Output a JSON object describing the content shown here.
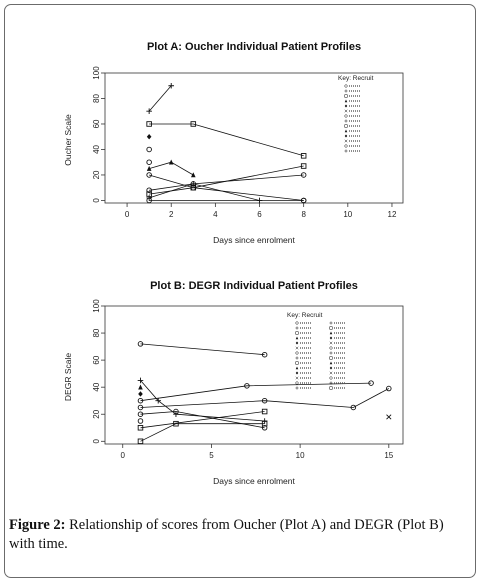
{
  "caption": {
    "label": "Figure 2:",
    "text": "Relationship of scores from Oucher (Plot A) and DEGR (Plot B) with time."
  },
  "chart_data": [
    {
      "type": "line",
      "title": "Plot A: Oucher Individual Patient Profiles",
      "xlabel": "Days since enrolment",
      "ylabel": "Oucher Scale",
      "xlim": [
        -1,
        12.5
      ],
      "ylim": [
        -2,
        100
      ],
      "x_ticks": [
        0,
        2,
        4,
        6,
        8,
        10,
        12
      ],
      "y_ticks": [
        0,
        20,
        40,
        60,
        80,
        100
      ],
      "legend_title": "Key: Recruit",
      "legend_placement": "top-right",
      "series": [
        {
          "marker": "plus",
          "points": [
            [
              1,
              70
            ],
            [
              2,
              90
            ]
          ]
        },
        {
          "marker": "square",
          "points": [
            [
              1,
              60
            ],
            [
              3,
              60
            ],
            [
              8,
              35
            ]
          ]
        },
        {
          "marker": "triangle",
          "points": [
            [
              1,
              25
            ],
            [
              2,
              30
            ],
            [
              3,
              20
            ]
          ]
        },
        {
          "marker": "circle",
          "points": [
            [
              1,
              20
            ],
            [
              3,
              10
            ],
            [
              8,
              0
            ]
          ]
        },
        {
          "marker": "square",
          "points": [
            [
              1,
              5
            ],
            [
              3,
              10
            ],
            [
              8,
              27
            ]
          ]
        },
        {
          "marker": "circle",
          "points": [
            [
              1,
              8
            ],
            [
              3,
              13
            ],
            [
              8,
              20
            ]
          ]
        },
        {
          "marker": "plus",
          "points": [
            [
              1,
              2
            ],
            [
              3,
              13
            ],
            [
              6,
              0
            ]
          ]
        },
        {
          "marker": "circle",
          "points": [
            [
              1,
              0
            ],
            [
              8,
              0
            ]
          ]
        },
        {
          "marker": "diamond",
          "points": [
            [
              1,
              50
            ]
          ]
        },
        {
          "marker": "circle",
          "points": [
            [
              1,
              40
            ]
          ]
        },
        {
          "marker": "circle",
          "points": [
            [
              1,
              30
            ]
          ]
        }
      ]
    },
    {
      "type": "line",
      "title": "Plot B: DEGR Individual Patient Profiles",
      "xlabel": "Days since enrolment",
      "ylabel": "DEGR Scale",
      "xlim": [
        -1,
        15.8
      ],
      "ylim": [
        -2,
        100
      ],
      "x_ticks": [
        0,
        5,
        10,
        15
      ],
      "y_ticks": [
        0,
        20,
        40,
        60,
        80,
        100
      ],
      "legend_title": "Key: Recruit",
      "legend_placement": "top-right",
      "series": [
        {
          "marker": "circle",
          "points": [
            [
              1,
              72
            ],
            [
              8,
              64
            ]
          ]
        },
        {
          "marker": "circle",
          "points": [
            [
              1,
              30
            ],
            [
              7,
              41
            ],
            [
              14,
              43
            ]
          ]
        },
        {
          "marker": "circle",
          "points": [
            [
              1,
              25
            ],
            [
              8,
              30
            ],
            [
              13,
              25
            ],
            [
              15,
              39
            ]
          ]
        },
        {
          "marker": "plus",
          "points": [
            [
              1,
              45
            ],
            [
              2,
              30
            ],
            [
              3,
              20
            ],
            [
              8,
              15
            ]
          ]
        },
        {
          "marker": "square",
          "points": [
            [
              1,
              10
            ],
            [
              8,
              22
            ]
          ]
        },
        {
          "marker": "square",
          "points": [
            [
              1,
              0
            ],
            [
              3,
              13
            ],
            [
              8,
              13
            ]
          ]
        },
        {
          "marker": "circle",
          "points": [
            [
              1,
              20
            ],
            [
              3,
              22
            ],
            [
              8,
              10
            ]
          ]
        },
        {
          "marker": "x",
          "points": [
            [
              15,
              18
            ]
          ]
        },
        {
          "marker": "triangle",
          "points": [
            [
              1,
              40
            ]
          ]
        },
        {
          "marker": "diamond",
          "points": [
            [
              1,
              35
            ]
          ]
        },
        {
          "marker": "circle",
          "points": [
            [
              1,
              15
            ]
          ]
        }
      ]
    }
  ]
}
